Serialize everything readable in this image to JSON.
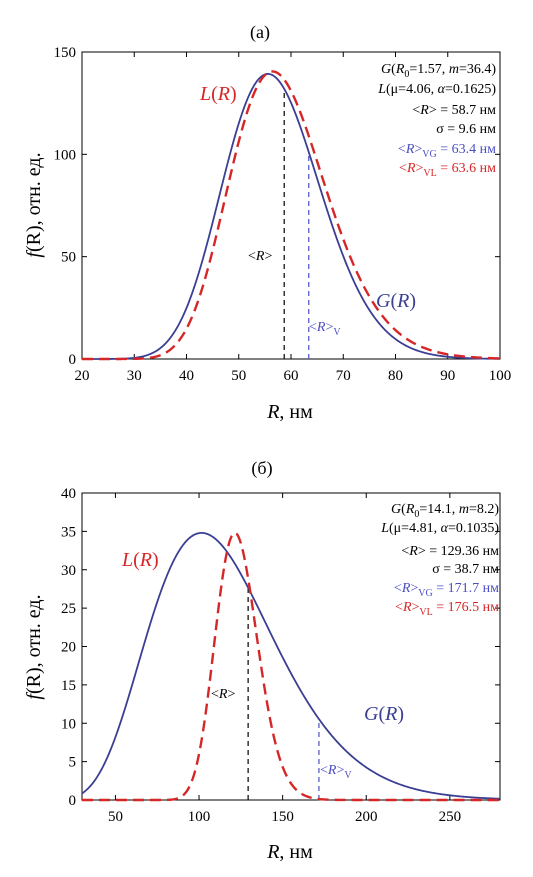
{
  "colors": {
    "gauss": "#3b3f93",
    "lognorm": "#d62728",
    "mean": "#000000",
    "vmean": "#4a4fc4"
  },
  "chart_data": [
    {
      "type": "line",
      "panel_label": "(а)",
      "xlabel": {
        "var": "R",
        "unit": ", нм"
      },
      "ylabel": {
        "var": "f",
        "rest": "(R), отн. ед."
      },
      "xlim": [
        20,
        100
      ],
      "ylim": [
        0,
        150
      ],
      "xticks": [
        20,
        30,
        40,
        50,
        60,
        70,
        80,
        90,
        100
      ],
      "yticks": [
        0,
        50,
        100,
        150
      ],
      "series": [
        {
          "name": "G(R)",
          "style": "solid",
          "dist": "gamma",
          "params": {
            "R0": 1.57,
            "m": 36.4
          },
          "peak": 139.3
        },
        {
          "name": "L(R)",
          "style": "dashed",
          "dist": "lognormal",
          "params": {
            "mu": 4.06,
            "alpha": 0.1625
          },
          "peak": 140.5
        }
      ],
      "markers": [
        {
          "label": "<R>",
          "x": 58.7,
          "style": "black-dashed"
        },
        {
          "label": "<R>V",
          "x": 63.4,
          "style": "blue-dashed"
        }
      ],
      "annotations": [
        "G(R0=1.57, m=36.4)",
        "L(μ=4.06, α=0.1625)",
        "<R> = 58.7 нм",
        "σ = 9.6 нм",
        "<R>VG = 63.4 нм",
        "<R>VL = 63.6 нм"
      ],
      "curve_labels": {
        "L": "L(R)",
        "G": "G(R)"
      }
    },
    {
      "type": "line",
      "panel_label": "(б)",
      "xlabel": {
        "var": "R",
        "unit": ", нм"
      },
      "ylabel": {
        "var": "f",
        "rest": "(R), отн. ед."
      },
      "xlim": [
        30,
        280
      ],
      "ylim": [
        0,
        40
      ],
      "xticks": [
        50,
        100,
        150,
        200,
        250
      ],
      "yticks": [
        0,
        5,
        10,
        15,
        20,
        25,
        30,
        35,
        40
      ],
      "series": [
        {
          "name": "G(R)",
          "style": "solid",
          "dist": "gamma",
          "params": {
            "R0": 14.1,
            "m": 8.2
          },
          "peak": 34.8
        },
        {
          "name": "L(R)",
          "style": "dashed",
          "dist": "lognormal",
          "params": {
            "mu": 4.81,
            "alpha": 0.1035
          },
          "peak": 34.8
        }
      ],
      "markers": [
        {
          "label": "<R>",
          "x": 129.36,
          "style": "black-dashed"
        },
        {
          "label": "<R>V",
          "x": 171.7,
          "style": "blue-dashed"
        }
      ],
      "annotations": [
        "G(R0=14.1, m=8.2)",
        "L(μ=4.81, α=0.1035)",
        "<R> = 129.36 нм",
        "σ = 38.7 нм",
        "<R>VG = 171.7 нм",
        "<R>VL = 176.5 нм"
      ],
      "curve_labels": {
        "L": "L(R)",
        "G": "G(R)"
      }
    }
  ]
}
